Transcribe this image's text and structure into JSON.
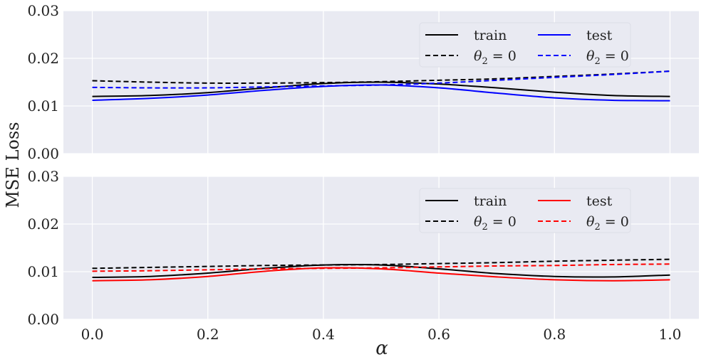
{
  "figure": {
    "ylabel": "MSE Loss",
    "xlabel": "α"
  },
  "colors": {
    "train": "#000000",
    "test_top": "#0000ff",
    "test_bottom": "#ff0000",
    "axes_bg": "#e9eaf2",
    "grid": "#ffffff"
  },
  "chart_data": [
    {
      "type": "line",
      "panel": "top",
      "xlim": [
        -0.05,
        1.05
      ],
      "ylim": [
        0.0,
        0.03
      ],
      "xticks": [
        0.0,
        0.2,
        0.4,
        0.6,
        0.8,
        1.0
      ],
      "xtick_labels": [
        "0.0",
        "0.2",
        "0.4",
        "0.6",
        "0.8",
        "1.0"
      ],
      "yticks": [
        0.0,
        0.01,
        0.02,
        0.03
      ],
      "ytick_labels": [
        "0.00",
        "0.01",
        "0.02",
        "0.03"
      ],
      "show_xtick_labels": false,
      "grid": true,
      "legend": {
        "placement": "top-right",
        "columns": 2,
        "entries": [
          {
            "series": 0,
            "label": "train"
          },
          {
            "series": 1,
            "label_base": "θ",
            "label_sub": "2",
            "label_rest": " = 0"
          },
          {
            "series": 2,
            "label": "test"
          },
          {
            "series": 3,
            "label_base": "θ",
            "label_sub": "2",
            "label_rest": " = 0"
          }
        ]
      },
      "series": [
        {
          "name": "train",
          "color": "#000000",
          "dash": "solid",
          "x": [
            0.0,
            0.1,
            0.2,
            0.3,
            0.4,
            0.5,
            0.6,
            0.7,
            0.8,
            0.9,
            1.0
          ],
          "y": [
            0.012,
            0.0122,
            0.0128,
            0.0138,
            0.0147,
            0.015,
            0.0146,
            0.0138,
            0.0129,
            0.0122,
            0.012
          ]
        },
        {
          "name": "θ2 = 0 (train)",
          "color": "#000000",
          "dash": "dashed",
          "x": [
            0.0,
            0.1,
            0.2,
            0.3,
            0.4,
            0.5,
            0.6,
            0.7,
            0.8,
            0.9,
            1.0
          ],
          "y": [
            0.0153,
            0.015,
            0.0148,
            0.0148,
            0.0149,
            0.0151,
            0.0154,
            0.0157,
            0.0162,
            0.0167,
            0.0173
          ]
        },
        {
          "name": "test",
          "color": "#0000ff",
          "dash": "solid",
          "x": [
            0.0,
            0.1,
            0.2,
            0.3,
            0.4,
            0.5,
            0.6,
            0.7,
            0.8,
            0.9,
            1.0
          ],
          "y": [
            0.0112,
            0.0116,
            0.0123,
            0.0133,
            0.0141,
            0.0144,
            0.0138,
            0.0127,
            0.0117,
            0.0112,
            0.0111
          ]
        },
        {
          "name": "θ2 = 0 (test)",
          "color": "#0000ff",
          "dash": "dashed",
          "x": [
            0.0,
            0.1,
            0.2,
            0.3,
            0.4,
            0.5,
            0.6,
            0.7,
            0.8,
            0.9,
            1.0
          ],
          "y": [
            0.0139,
            0.0138,
            0.0138,
            0.014,
            0.0142,
            0.0144,
            0.0148,
            0.0154,
            0.016,
            0.0166,
            0.0173
          ]
        }
      ]
    },
    {
      "type": "line",
      "panel": "bottom",
      "xlim": [
        -0.05,
        1.05
      ],
      "ylim": [
        0.0,
        0.03
      ],
      "xticks": [
        0.0,
        0.2,
        0.4,
        0.6,
        0.8,
        1.0
      ],
      "xtick_labels": [
        "0.0",
        "0.2",
        "0.4",
        "0.6",
        "0.8",
        "1.0"
      ],
      "yticks": [
        0.0,
        0.01,
        0.02,
        0.03
      ],
      "ytick_labels": [
        "0.00",
        "0.01",
        "0.02",
        "0.03"
      ],
      "show_xtick_labels": true,
      "grid": true,
      "legend": {
        "placement": "top-right",
        "columns": 2,
        "entries": [
          {
            "series": 0,
            "label": "train"
          },
          {
            "series": 1,
            "label_base": "θ",
            "label_sub": "2",
            "label_rest": " = 0"
          },
          {
            "series": 2,
            "label": "test"
          },
          {
            "series": 3,
            "label_base": "θ",
            "label_sub": "2",
            "label_rest": " = 0"
          }
        ]
      },
      "series": [
        {
          "name": "train",
          "color": "#000000",
          "dash": "solid",
          "x": [
            0.0,
            0.1,
            0.2,
            0.3,
            0.4,
            0.5,
            0.6,
            0.7,
            0.8,
            0.9,
            1.0
          ],
          "y": [
            0.0088,
            0.009,
            0.0097,
            0.0107,
            0.0114,
            0.0114,
            0.0106,
            0.0096,
            0.009,
            0.0089,
            0.0093
          ]
        },
        {
          "name": "θ2 = 0 (train)",
          "color": "#000000",
          "dash": "dashed",
          "x": [
            0.0,
            0.1,
            0.2,
            0.3,
            0.4,
            0.5,
            0.6,
            0.7,
            0.8,
            0.9,
            1.0
          ],
          "y": [
            0.0107,
            0.0109,
            0.0111,
            0.0113,
            0.0114,
            0.0115,
            0.0117,
            0.0119,
            0.0122,
            0.0124,
            0.0126
          ]
        },
        {
          "name": "test",
          "color": "#ff0000",
          "dash": "solid",
          "x": [
            0.0,
            0.1,
            0.2,
            0.3,
            0.4,
            0.5,
            0.6,
            0.7,
            0.8,
            0.9,
            1.0
          ],
          "y": [
            0.0081,
            0.0083,
            0.009,
            0.0101,
            0.0108,
            0.0106,
            0.0097,
            0.0089,
            0.0083,
            0.0081,
            0.0083
          ]
        },
        {
          "name": "θ2 = 0 (test)",
          "color": "#ff0000",
          "dash": "dashed",
          "x": [
            0.0,
            0.1,
            0.2,
            0.3,
            0.4,
            0.5,
            0.6,
            0.7,
            0.8,
            0.9,
            1.0
          ],
          "y": [
            0.0101,
            0.0102,
            0.0104,
            0.0106,
            0.0107,
            0.0108,
            0.011,
            0.0112,
            0.0113,
            0.0115,
            0.0116
          ]
        }
      ]
    }
  ]
}
